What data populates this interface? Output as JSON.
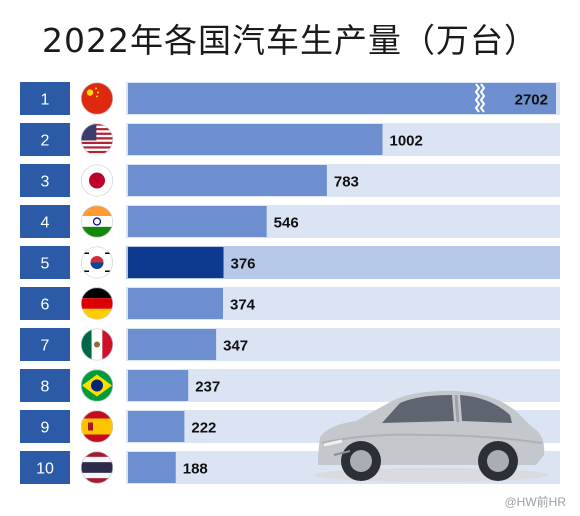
{
  "title": "2022年各国汽车生产量（万台）",
  "watermark": "@HW前HR",
  "colors": {
    "rank_bg": "#2b5aa7",
    "bar": "#6d8fcf",
    "bar_highlight": "#0d3a8f",
    "row_bg": "#dbe4f3",
    "row_highlight_bg": "#b7c9e8",
    "value_text": "#111111"
  },
  "chart_data": {
    "type": "bar",
    "orientation": "horizontal",
    "title": "2022年各国汽车生产量（万台）",
    "categories": [
      "1",
      "2",
      "3",
      "4",
      "5",
      "6",
      "7",
      "8",
      "9",
      "10"
    ],
    "countries": [
      "China",
      "United States",
      "Japan",
      "India",
      "South Korea",
      "Germany",
      "Mexico",
      "Brazil",
      "Spain",
      "Thailand"
    ],
    "values": [
      2702,
      1002,
      783,
      546,
      376,
      374,
      347,
      237,
      222,
      188
    ],
    "value_labels": [
      "2702",
      "1002",
      "783",
      "546",
      "376",
      "374",
      "347",
      "237",
      "222",
      "188"
    ],
    "highlight_index": 4,
    "axis_break_on_first_bar": true,
    "grid": false,
    "legend": "none"
  }
}
